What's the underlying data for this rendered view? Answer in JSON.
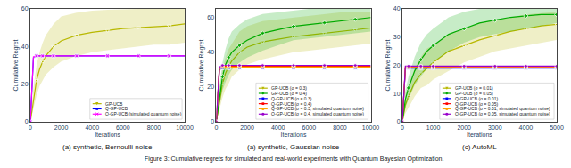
{
  "chart_data": [
    {
      "type": "line",
      "subtitle": "(a) synthetic, Bernoulli noise",
      "xlabel": "Iterations",
      "ylabel": "Cumulative Regret",
      "xlim": [
        0,
        10000
      ],
      "ylim": [
        0,
        60
      ],
      "xticks": [
        0,
        2000,
        4000,
        6000,
        8000,
        10000
      ],
      "yticks": [
        0,
        20,
        40,
        60
      ],
      "grid": false,
      "legend": "lower right",
      "x": [
        0,
        200,
        400,
        600,
        800,
        1000,
        1500,
        2000,
        3000,
        4000,
        5000,
        6000,
        7000,
        8000,
        9000,
        10000
      ],
      "series": [
        {
          "name": "GP-UCB",
          "color": "#b8b800",
          "marker": "triangle-down",
          "values": [
            0,
            12,
            22,
            28,
            32,
            35,
            40,
            43,
            46,
            47.5,
            48.5,
            49.5,
            50,
            50.5,
            51,
            52
          ],
          "upper": [
            0,
            18,
            30,
            37,
            42,
            46,
            52,
            56,
            58,
            59,
            59.5,
            59.8,
            60,
            60,
            60,
            60
          ],
          "lower": [
            0,
            7,
            14,
            19,
            22,
            25,
            29,
            32,
            35,
            37,
            38,
            39,
            40,
            41,
            41,
            42
          ]
        },
        {
          "name": "Q-GP-UCB",
          "color": "blue",
          "marker": "square",
          "values": [
            0,
            34,
            35,
            35,
            35,
            35,
            35,
            35,
            35,
            35,
            35,
            35,
            35,
            35,
            35,
            35
          ]
        },
        {
          "name": "Q-GP-UCB (simulated quantum noise)",
          "color": "#ff00ff",
          "marker": "x",
          "values": [
            0,
            34.5,
            35,
            35,
            35,
            35,
            35,
            35,
            35,
            35,
            35,
            35,
            35,
            35,
            35,
            35
          ]
        }
      ]
    },
    {
      "type": "line",
      "subtitle": "(a) synthetic, Gaussian noise",
      "xlabel": "Iterations",
      "ylabel": "Cumulative Regret",
      "xlim": [
        0,
        10000
      ],
      "ylim": [
        0,
        65
      ],
      "xticks": [
        0,
        2000,
        4000,
        6000,
        8000,
        10000
      ],
      "yticks": [
        0,
        20,
        40,
        60
      ],
      "grid": false,
      "legend": "lower right",
      "x": [
        0,
        200,
        400,
        600,
        800,
        1000,
        1500,
        2000,
        3000,
        4000,
        5000,
        6000,
        7000,
        8000,
        9000,
        10000
      ],
      "series": [
        {
          "name": "GP-UCB (σ = 0.3)",
          "color": "#b8b800",
          "marker": "triangle-down",
          "values": [
            0,
            12,
            22,
            28,
            32,
            35,
            40,
            43,
            46,
            47.5,
            49,
            50,
            51,
            52,
            53,
            54
          ],
          "upper": [
            0,
            18,
            30,
            37,
            42,
            45,
            52,
            55,
            58,
            59,
            60,
            61,
            62,
            63,
            63,
            63
          ],
          "lower": [
            0,
            7,
            14,
            19,
            22,
            26,
            30,
            33,
            36,
            38,
            40,
            41,
            42,
            43,
            44,
            45
          ]
        },
        {
          "name": "GP-UCB (σ = 0.4)",
          "color": "#00aa00",
          "marker": "diamond",
          "values": [
            0,
            14,
            26,
            33,
            37,
            40,
            44,
            47,
            51,
            53,
            55,
            56,
            57,
            58,
            59,
            60
          ],
          "upper": [
            0,
            20,
            34,
            42,
            48,
            52,
            56,
            59,
            62,
            63,
            64,
            65,
            65,
            65,
            65,
            65
          ],
          "lower": [
            0,
            9,
            18,
            23,
            27,
            30,
            34,
            37,
            41,
            44,
            47,
            48,
            49,
            50,
            51,
            52
          ]
        },
        {
          "name": "Q-GP-UCB (σ = 0.3)",
          "color": "blue",
          "marker": "square",
          "values": [
            0,
            30,
            31,
            31,
            31,
            31,
            31,
            31,
            31,
            31,
            31,
            31,
            31,
            31,
            31,
            31
          ]
        },
        {
          "name": "Q-GP-UCB (σ = 0.4)",
          "color": "red",
          "marker": "square",
          "values": [
            0,
            31,
            32,
            32,
            32,
            32,
            32,
            32,
            32,
            32,
            32,
            32,
            32,
            32,
            32,
            32
          ]
        },
        {
          "name": "Q-GP-UCB (σ = 0.3, simulated quantum noise)",
          "color": "orange",
          "marker": "circle",
          "values": [
            0,
            30.5,
            31.5,
            31.5,
            31.5,
            31.5,
            31.5,
            31.5,
            31.5,
            31.5,
            31.5,
            31.5,
            31.5,
            31.5,
            31.5,
            31.5
          ]
        },
        {
          "name": "Q-GP-UCB (σ = 0.4, simulated quantum noise)",
          "color": "#9900cc",
          "marker": "circle",
          "values": [
            0,
            31.5,
            32.5,
            32.5,
            32.5,
            32.5,
            32.5,
            32.5,
            32.5,
            32.5,
            32.5,
            32.5,
            32.5,
            32.5,
            32.5,
            32.5
          ]
        }
      ]
    },
    {
      "type": "line",
      "subtitle": "(c) AutoML",
      "xlabel": "Iterations",
      "ylabel": "Cumulative Regret",
      "xlim": [
        0,
        5000
      ],
      "ylim": [
        0,
        40
      ],
      "xticks": [
        0,
        1000,
        2000,
        3000,
        4000,
        5000
      ],
      "yticks": [
        0,
        10,
        20,
        30,
        40
      ],
      "grid": false,
      "legend": "lower right",
      "x": [
        0,
        100,
        200,
        400,
        600,
        800,
        1000,
        1500,
        2000,
        2500,
        3000,
        3500,
        4000,
        4500,
        5000
      ],
      "series": [
        {
          "name": "GP-UCB (σ = 0.01)",
          "color": "#b8b800",
          "marker": "triangle-down",
          "values": [
            0,
            6,
            9,
            14,
            17,
            19,
            21,
            25,
            27,
            29,
            30.5,
            32,
            33,
            34,
            34.5
          ],
          "upper": [
            0,
            9,
            13,
            19,
            23,
            26,
            27,
            31,
            33,
            35,
            36,
            37,
            38,
            38.5,
            39
          ],
          "lower": [
            0,
            3,
            5,
            9,
            12,
            13,
            15,
            18,
            21,
            23,
            25,
            26,
            27,
            28,
            29
          ]
        },
        {
          "name": "GP-UCB (σ = 0.05)",
          "color": "#00aa00",
          "marker": "diamond",
          "values": [
            0,
            8,
            12,
            18,
            22,
            25,
            27,
            31,
            33,
            35,
            36,
            37,
            37.5,
            38,
            38
          ],
          "upper": [
            0,
            11,
            16,
            23,
            28,
            31,
            33,
            37,
            39,
            40,
            40,
            40,
            40,
            40,
            40
          ],
          "lower": [
            0,
            5,
            8,
            13,
            16,
            19,
            21,
            25,
            28,
            30,
            31,
            32,
            33,
            34,
            35
          ]
        },
        {
          "name": "Q-GP-UCB (σ = 0.01)",
          "color": "blue",
          "marker": "square",
          "values": [
            0,
            19,
            19,
            19,
            19,
            19,
            19,
            19,
            19,
            19,
            19,
            19,
            19,
            19,
            19
          ]
        },
        {
          "name": "Q-GP-UCB (σ = 0.05)",
          "color": "red",
          "marker": "square",
          "values": [
            0,
            19.5,
            19.5,
            19.5,
            19.5,
            19.5,
            19.5,
            19.5,
            19.5,
            19.5,
            19.5,
            19.5,
            19.5,
            19.5,
            19.5
          ]
        },
        {
          "name": "Q-GP-UCB (σ = 0.01, simulated quantum noise)",
          "color": "orange",
          "marker": "circle",
          "values": [
            0,
            19.2,
            19.2,
            19.2,
            19.2,
            19.2,
            19.2,
            19.2,
            19.2,
            19.2,
            19.2,
            19.2,
            19.2,
            19.2,
            19.2
          ]
        },
        {
          "name": "Q-GP-UCB (σ = 0.05, simulated quantum noise)",
          "color": "#9900cc",
          "marker": "circle",
          "values": [
            0,
            19.7,
            19.7,
            19.7,
            19.7,
            19.7,
            19.7,
            19.7,
            19.7,
            19.7,
            19.7,
            19.7,
            19.7,
            19.7,
            19.7
          ]
        }
      ]
    }
  ],
  "caption": "Figure 3: Cumulative regrets for simulated and real-world experiments with Quantum Bayesian Optimization."
}
